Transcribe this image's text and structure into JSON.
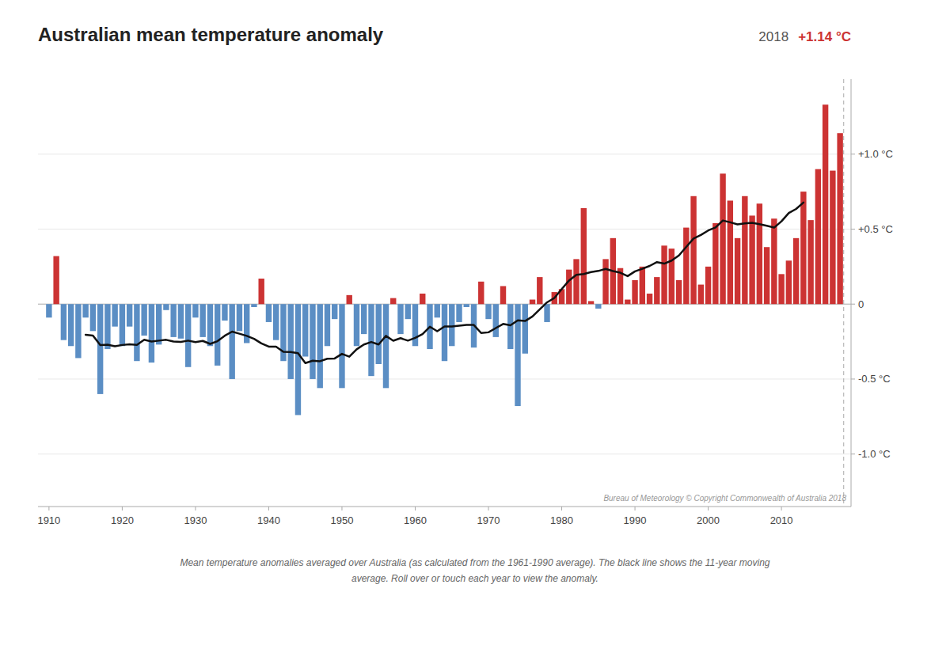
{
  "chart_data": {
    "type": "bar",
    "title": "Australian mean temperature anomaly",
    "subtitle": [
      "2018",
      "+1.14 °C"
    ],
    "annotations": [
      "Bureau of Meteorology © Copyright Commonwealth of Australia 2018",
      "Mean temperature anomalies averaged over Australia (as calculated from the 1961-1990 average). The black line shows the 11-year moving",
      "average. Roll over or touch each year to view the anomaly."
    ],
    "x": [
      1910,
      1911,
      1912,
      1913,
      1914,
      1915,
      1916,
      1917,
      1918,
      1919,
      1920,
      1921,
      1922,
      1923,
      1924,
      1925,
      1926,
      1927,
      1928,
      1929,
      1930,
      1931,
      1932,
      1933,
      1934,
      1935,
      1936,
      1937,
      1938,
      1939,
      1940,
      1941,
      1942,
      1943,
      1944,
      1945,
      1946,
      1947,
      1948,
      1949,
      1950,
      1951,
      1952,
      1953,
      1954,
      1955,
      1956,
      1957,
      1958,
      1959,
      1960,
      1961,
      1962,
      1963,
      1964,
      1965,
      1966,
      1967,
      1968,
      1969,
      1970,
      1971,
      1972,
      1973,
      1974,
      1975,
      1976,
      1977,
      1978,
      1979,
      1980,
      1981,
      1982,
      1983,
      1984,
      1985,
      1986,
      1987,
      1988,
      1989,
      1990,
      1991,
      1992,
      1993,
      1994,
      1995,
      1996,
      1997,
      1998,
      1999,
      2000,
      2001,
      2002,
      2003,
      2004,
      2005,
      2006,
      2007,
      2008,
      2009,
      2010,
      2011,
      2012,
      2013,
      2014,
      2015,
      2016,
      2017,
      2018
    ],
    "series": [
      {
        "type": "bar",
        "values": [
          -0.09,
          0.32,
          -0.24,
          -0.28,
          -0.36,
          -0.09,
          -0.18,
          -0.6,
          -0.3,
          -0.15,
          -0.28,
          -0.15,
          -0.38,
          -0.21,
          -0.39,
          -0.27,
          -0.04,
          -0.22,
          -0.23,
          -0.42,
          -0.09,
          -0.22,
          -0.28,
          -0.41,
          -0.11,
          -0.5,
          -0.18,
          -0.26,
          -0.02,
          0.17,
          -0.12,
          -0.24,
          -0.38,
          -0.5,
          -0.74,
          -0.35,
          -0.5,
          -0.56,
          -0.28,
          -0.1,
          -0.56,
          0.06,
          -0.28,
          -0.2,
          -0.48,
          -0.4,
          -0.56,
          0.04,
          -0.2,
          -0.1,
          -0.28,
          0.07,
          -0.3,
          -0.09,
          -0.38,
          -0.28,
          -0.12,
          -0.02,
          -0.29,
          0.15,
          -0.1,
          -0.22,
          0.12,
          -0.3,
          -0.68,
          -0.33,
          0.03,
          0.18,
          -0.12,
          0.08,
          0.1,
          0.23,
          0.3,
          0.64,
          0.02,
          -0.03,
          0.3,
          0.44,
          0.24,
          0.03,
          0.16,
          0.25,
          0.07,
          0.18,
          0.39,
          0.37,
          0.16,
          0.51,
          0.72,
          0.13,
          0.25,
          0.54,
          0.87,
          0.69,
          0.44,
          0.72,
          0.59,
          0.67,
          0.38,
          0.57,
          0.2,
          0.29,
          0.44,
          0.75,
          0.56,
          0.9,
          1.33,
          0.89,
          1.14
        ],
        "colors": [
          "#5b8ec4",
          "#cc3333",
          "#5b8ec4",
          "#5b8ec4",
          "#5b8ec4",
          "#5b8ec4",
          "#5b8ec4",
          "#5b8ec4",
          "#5b8ec4",
          "#5b8ec4",
          "#5b8ec4",
          "#5b8ec4",
          "#5b8ec4",
          "#5b8ec4",
          "#5b8ec4",
          "#5b8ec4",
          "#5b8ec4",
          "#5b8ec4",
          "#5b8ec4",
          "#5b8ec4",
          "#5b8ec4",
          "#5b8ec4",
          "#5b8ec4",
          "#5b8ec4",
          "#5b8ec4",
          "#5b8ec4",
          "#5b8ec4",
          "#5b8ec4",
          "#5b8ec4",
          "#cc3333",
          "#5b8ec4",
          "#5b8ec4",
          "#5b8ec4",
          "#5b8ec4",
          "#5b8ec4",
          "#5b8ec4",
          "#5b8ec4",
          "#5b8ec4",
          "#5b8ec4",
          "#5b8ec4",
          "#5b8ec4",
          "#cc3333",
          "#5b8ec4",
          "#5b8ec4",
          "#5b8ec4",
          "#5b8ec4",
          "#5b8ec4",
          "#cc3333",
          "#5b8ec4",
          "#5b8ec4",
          "#5b8ec4",
          "#cc3333",
          "#5b8ec4",
          "#5b8ec4",
          "#5b8ec4",
          "#5b8ec4",
          "#5b8ec4",
          "#5b8ec4",
          "#5b8ec4",
          "#cc3333",
          "#5b8ec4",
          "#5b8ec4",
          "#cc3333",
          "#5b8ec4",
          "#5b8ec4",
          "#5b8ec4",
          "#cc3333",
          "#cc3333",
          "#5b8ec4",
          "#cc3333",
          "#cc3333",
          "#cc3333",
          "#cc3333",
          "#cc3333",
          "#cc3333",
          "#5b8ec4",
          "#cc3333",
          "#cc3333",
          "#cc3333",
          "#cc3333",
          "#cc3333",
          "#cc3333",
          "#cc3333",
          "#cc3333",
          "#cc3333",
          "#cc3333",
          "#cc3333",
          "#cc3333",
          "#cc3333",
          "#cc3333",
          "#cc3333",
          "#cc3333",
          "#cc3333",
          "#cc3333",
          "#cc3333",
          "#cc3333",
          "#cc3333",
          "#cc3333",
          "#cc3333",
          "#cc3333",
          "#cc3333",
          "#cc3333",
          "#cc3333",
          "#cc3333",
          "#cc3333",
          "#cc3333",
          "#cc3333",
          "#cc3333",
          "#cc3333"
        ]
      },
      {
        "type": "line",
        "color": "#111111",
        "values": [
          null,
          null,
          null,
          null,
          null,
          -0.2045,
          -0.21,
          -0.2736,
          -0.2709,
          -0.2809,
          -0.2727,
          -0.2682,
          -0.2718,
          -0.2382,
          -0.2491,
          -0.2436,
          -0.2382,
          -0.25,
          -0.2527,
          -0.2436,
          -0.2536,
          -0.2455,
          -0.2655,
          -0.2473,
          -0.2109,
          -0.1836,
          -0.1973,
          -0.2118,
          -0.2318,
          -0.2618,
          -0.2836,
          -0.2836,
          -0.3182,
          -0.32,
          -0.3273,
          -0.3936,
          -0.3773,
          -0.3809,
          -0.3645,
          -0.3627,
          -0.3318,
          -0.3509,
          -0.3018,
          -0.2691,
          -0.2527,
          -0.2691,
          -0.2118,
          -0.2445,
          -0.2273,
          -0.2436,
          -0.2255,
          -0.2,
          -0.1509,
          -0.1809,
          -0.1491,
          -0.1491,
          -0.1436,
          -0.1391,
          -0.1391,
          -0.1927,
          -0.1882,
          -0.16,
          -0.1327,
          -0.1418,
          -0.1082,
          -0.1127,
          -0.0827,
          -0.0355,
          0.0118,
          0.0409,
          0.1,
          0.1573,
          0.1945,
          0.2,
          0.2136,
          0.2209,
          0.2345,
          0.22,
          0.2091,
          0.1864,
          0.2182,
          0.2355,
          0.2545,
          0.28,
          0.27,
          0.29,
          0.3245,
          0.3809,
          0.4373,
          0.4609,
          0.4909,
          0.5109,
          0.5573,
          0.5455,
          0.5318,
          0.5382,
          0.5418,
          0.5327,
          0.5218,
          0.51,
          0.5518,
          0.6073,
          0.6345,
          0.6773,
          null,
          null,
          null,
          null,
          null
        ]
      }
    ],
    "reference_x": 2018.5,
    "xlim": [
      1908.5,
      2019.5
    ],
    "xticks": [
      1910,
      1920,
      1930,
      1940,
      1950,
      1960,
      1970,
      1980,
      1990,
      2000,
      2010
    ],
    "ylim": [
      -1.35,
      1.5
    ],
    "yticks": [
      {
        "value": -1.0,
        "label": "-1.0 °C"
      },
      {
        "value": -0.5,
        "label": "-0.5 °C"
      },
      0,
      {
        "value": 0.5,
        "label": "+0.5 °C"
      },
      {
        "value": 1.0,
        "label": "+1.0 °C"
      }
    ],
    "grid": true
  }
}
